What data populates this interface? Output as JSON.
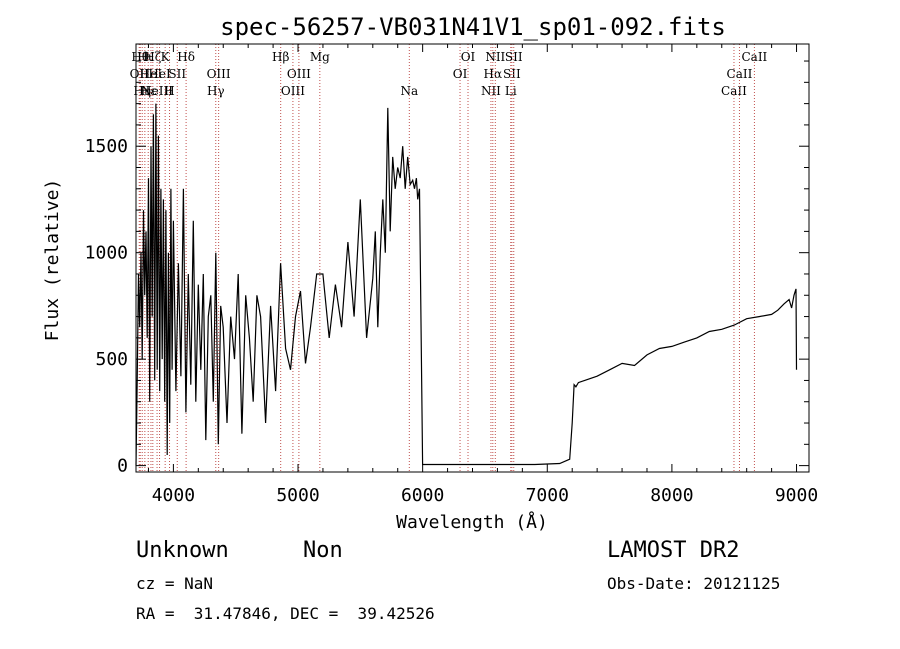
{
  "info": {
    "class": "Unknown",
    "subclass": "Non",
    "cz": "cz = NaN",
    "radec": "RA =  31.47846, DEC =  39.42526",
    "survey": "LAMOST DR2",
    "obsdate": "Obs-Date: 20121125"
  },
  "chart_data": {
    "type": "line",
    "title": "spec-56257-VB031N41V1_sp01-092.fits",
    "xlabel": "Wavelength (Å)",
    "ylabel": "Flux (relative)",
    "xlim": [
      3700,
      9100
    ],
    "ylim": [
      -30,
      1980
    ],
    "xticks": [
      4000,
      5000,
      6000,
      7000,
      8000,
      9000
    ],
    "yticks": [
      0,
      500,
      1000,
      1500
    ],
    "line_color": "#000000",
    "marker_color": "#c0504d",
    "series": [
      {
        "x": [
          3700,
          3710,
          3720,
          3730,
          3740,
          3750,
          3760,
          3770,
          3780,
          3790,
          3800,
          3810,
          3820,
          3830,
          3840,
          3850,
          3860,
          3870,
          3880,
          3890,
          3900,
          3910,
          3920,
          3930,
          3940,
          3950,
          3960,
          3970,
          3980,
          3990,
          4000,
          4020,
          4040,
          4060,
          4080,
          4100,
          4120,
          4140,
          4160,
          4180,
          4200,
          4220,
          4240,
          4260,
          4280,
          4300,
          4320,
          4340,
          4360,
          4380,
          4400,
          4430,
          4460,
          4490,
          4520,
          4550,
          4580,
          4610,
          4640,
          4670,
          4700,
          4740,
          4780,
          4820,
          4860,
          4900,
          4940,
          4980,
          5020,
          5060,
          5100,
          5150,
          5200,
          5250,
          5300,
          5350,
          5400,
          5450,
          5500,
          5550,
          5600,
          5620,
          5640,
          5660,
          5680,
          5700,
          5720,
          5740,
          5760,
          5780,
          5800,
          5820,
          5840,
          5860,
          5880,
          5900,
          5920,
          5935,
          5950,
          5960,
          5975,
          6000,
          6100,
          6300,
          6500,
          6700,
          6900,
          7100,
          7180,
          7200,
          7215,
          7230,
          7250,
          7300,
          7400,
          7500,
          7600,
          7700,
          7800,
          7900,
          8000,
          8100,
          8200,
          8300,
          8400,
          8500,
          8600,
          8700,
          8800,
          8850,
          8900,
          8940,
          8960,
          8980,
          8990,
          8996,
          9000
        ],
        "y": [
          0,
          400,
          900,
          650,
          1000,
          500,
          1200,
          800,
          1100,
          600,
          1350,
          300,
          1500,
          700,
          1650,
          400,
          1700,
          450,
          1550,
          350,
          1300,
          500,
          1250,
          300,
          1200,
          50,
          1000,
          200,
          1300,
          450,
          1150,
          350,
          950,
          420,
          1300,
          250,
          900,
          380,
          1150,
          300,
          850,
          450,
          900,
          120,
          700,
          800,
          300,
          1000,
          100,
          750,
          650,
          200,
          700,
          500,
          900,
          150,
          800,
          600,
          300,
          800,
          700,
          200,
          750,
          350,
          950,
          550,
          450,
          700,
          820,
          480,
          650,
          900,
          900,
          600,
          850,
          650,
          1050,
          700,
          1250,
          600,
          880,
          1100,
          650,
          1000,
          1250,
          1000,
          1680,
          1100,
          1450,
          1300,
          1400,
          1350,
          1500,
          1300,
          1450,
          1320,
          1340,
          1300,
          1350,
          1250,
          1300,
          5,
          5,
          5,
          5,
          5,
          5,
          10,
          30,
          200,
          380,
          370,
          390,
          400,
          420,
          450,
          480,
          470,
          520,
          550,
          560,
          580,
          600,
          630,
          640,
          660,
          690,
          700,
          710,
          730,
          760,
          780,
          740,
          800,
          820,
          830,
          450
        ]
      }
    ],
    "line_markers": [
      {
        "w": 3726,
        "label": "OII",
        "row": 1
      },
      {
        "w": 3734,
        "label": "Hθ",
        "row": 0
      },
      {
        "w": 3750,
        "label": "Hη",
        "row": 2
      },
      {
        "w": 3771,
        "label": "Hι",
        "row": 0
      },
      {
        "w": 3798,
        "label": "Hε",
        "row": 2
      },
      {
        "w": 3820,
        "label": "HeI",
        "row": 1
      },
      {
        "w": 3835,
        "label": "Hζ",
        "row": 0
      },
      {
        "w": 3869,
        "label": "NeIII",
        "row": 2
      },
      {
        "w": 3889,
        "label": "HeI",
        "row": 1
      },
      {
        "w": 3934,
        "label": "K",
        "row": 0
      },
      {
        "w": 3969,
        "label": "H",
        "row": 2
      },
      {
        "w": 4031,
        "label": "SII",
        "row": 1
      },
      {
        "w": 4102,
        "label": "Hδ",
        "row": 0
      },
      {
        "w": 4340,
        "label": "Hγ",
        "row": 2
      },
      {
        "w": 4363,
        "label": "OIII",
        "row": 1
      },
      {
        "w": 4861,
        "label": "Hβ",
        "row": 0
      },
      {
        "w": 4959,
        "label": "OIII",
        "row": 2
      },
      {
        "w": 5007,
        "label": "OIII",
        "row": 1
      },
      {
        "w": 5175,
        "label": "Mg",
        "row": 0
      },
      {
        "w": 5893,
        "label": "Na",
        "row": 2
      },
      {
        "w": 6300,
        "label": "OI",
        "row": 1
      },
      {
        "w": 6364,
        "label": "OI",
        "row": 0
      },
      {
        "w": 6548,
        "label": "NII",
        "row": 2
      },
      {
        "w": 6563,
        "label": "Hα",
        "row": 1
      },
      {
        "w": 6583,
        "label": "NII",
        "row": 0
      },
      {
        "w": 6707,
        "label": "Li",
        "row": 2
      },
      {
        "w": 6716,
        "label": "SII",
        "row": 1
      },
      {
        "w": 6731,
        "label": "SII",
        "row": 0
      },
      {
        "w": 8498,
        "label": "CaII",
        "row": 2
      },
      {
        "w": 8542,
        "label": "CaII",
        "row": 1
      },
      {
        "w": 8662,
        "label": "CaII",
        "row": 0
      }
    ]
  }
}
